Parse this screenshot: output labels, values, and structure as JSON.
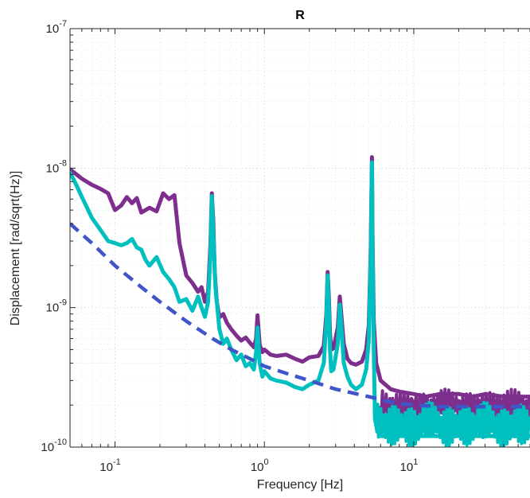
{
  "chart_data": {
    "type": "line",
    "title": "R",
    "xlabel": "Frequency [Hz]",
    "ylabel": "Displacement [rad/sqrt(Hz)]",
    "xscale": "log",
    "yscale": "log",
    "xlim": [
      0.05,
      60
    ],
    "ylim": [
      1e-10,
      1e-07
    ],
    "grid": true,
    "minor_grid": true,
    "x_ticks": [
      {
        "value": 0.1,
        "base": "10",
        "exp": "-1"
      },
      {
        "value": 1,
        "base": "10",
        "exp": "0"
      },
      {
        "value": 10,
        "base": "10",
        "exp": "1"
      }
    ],
    "y_ticks": [
      {
        "value": 1e-10,
        "base": "10",
        "exp": "-10"
      },
      {
        "value": 1e-09,
        "base": "10",
        "exp": "-9"
      },
      {
        "value": 1e-08,
        "base": "10",
        "exp": "-8"
      },
      {
        "value": 1e-07,
        "base": "10",
        "exp": "-7"
      }
    ],
    "series": [
      {
        "color": "#7E2F8E",
        "style": "solid",
        "x": [
          0.05,
          0.06,
          0.07,
          0.08,
          0.09,
          0.1,
          0.11,
          0.12,
          0.13,
          0.14,
          0.15,
          0.17,
          0.19,
          0.21,
          0.23,
          0.25,
          0.27,
          0.3,
          0.33,
          0.36,
          0.38,
          0.4,
          0.42,
          0.435,
          0.445,
          0.455,
          0.465,
          0.48,
          0.5,
          0.53,
          0.56,
          0.6,
          0.65,
          0.7,
          0.75,
          0.8,
          0.85,
          0.88,
          0.9,
          0.93,
          0.97,
          1.0,
          1.1,
          1.2,
          1.4,
          1.6,
          1.8,
          2.0,
          2.3,
          2.5,
          2.6,
          2.65,
          2.7,
          2.75,
          2.8,
          2.9,
          3.1,
          3.2,
          3.3,
          3.4,
          3.6,
          3.8,
          4.1,
          4.5,
          4.8,
          5.0,
          5.15,
          5.25,
          5.3,
          5.4,
          5.6,
          6.0,
          7,
          8,
          10,
          12,
          15,
          20,
          25,
          30,
          40,
          50,
          60
        ],
        "y": [
          9.8e-09,
          8.4e-09,
          7.6e-09,
          7.1e-09,
          6.6e-09,
          5e-09,
          5.4e-09,
          6.2e-09,
          5.6e-09,
          6.1e-09,
          4.8e-09,
          5.2e-09,
          4.9e-09,
          6.6e-09,
          6e-09,
          6.4e-09,
          2.9e-09,
          1.7e-09,
          1.5e-09,
          1.3e-09,
          1.4e-09,
          1.1e-09,
          1.3e-09,
          2.8e-09,
          6.6e-09,
          4.2e-09,
          1.8e-09,
          1.1e-09,
          8.5e-10,
          9e-10,
          7.8e-10,
          7e-10,
          6.3e-10,
          5.8e-10,
          6.1e-10,
          5.6e-10,
          5.2e-10,
          6e-10,
          8.8e-10,
          5.4e-10,
          4.8e-10,
          5e-10,
          4.6e-10,
          4.5e-10,
          4.6e-10,
          4.3e-10,
          4.1e-10,
          4.4e-10,
          4.5e-10,
          5.3e-10,
          9e-10,
          1.8e-09,
          1.2e-09,
          6.5e-10,
          5e-10,
          5.1e-10,
          7.2e-10,
          1.2e-09,
          8e-10,
          5.5e-10,
          4.3e-10,
          4e-10,
          3.9e-10,
          4.1e-10,
          5e-10,
          7.5e-10,
          2.5e-09,
          1.2e-08,
          3e-09,
          8e-10,
          4e-10,
          3e-10,
          2.6e-10,
          2.5e-10,
          2.4e-10,
          2.3e-10,
          2.4e-10,
          2.4e-10,
          2.3e-10,
          2.4e-10,
          2.3e-10,
          2.3e-10,
          2.3e-10
        ]
      },
      {
        "color": "#00BFBF",
        "style": "solid",
        "x": [
          0.05,
          0.055,
          0.06,
          0.065,
          0.07,
          0.08,
          0.09,
          0.1,
          0.11,
          0.12,
          0.13,
          0.14,
          0.15,
          0.16,
          0.17,
          0.19,
          0.21,
          0.23,
          0.25,
          0.27,
          0.3,
          0.33,
          0.36,
          0.38,
          0.4,
          0.42,
          0.435,
          0.445,
          0.455,
          0.47,
          0.5,
          0.53,
          0.56,
          0.6,
          0.65,
          0.7,
          0.75,
          0.8,
          0.85,
          0.88,
          0.9,
          0.93,
          0.97,
          1.0,
          1.1,
          1.2,
          1.4,
          1.6,
          1.8,
          2.0,
          2.3,
          2.5,
          2.6,
          2.65,
          2.7,
          2.75,
          2.8,
          2.9,
          3.1,
          3.2,
          3.3,
          3.4,
          3.6,
          3.8,
          4.1,
          4.5,
          4.8,
          5.0,
          5.15,
          5.25,
          5.3,
          5.4,
          5.5,
          5.7,
          6.0,
          7,
          8,
          10,
          12,
          15,
          20,
          25,
          30,
          40,
          50,
          60
        ],
        "y": [
          9.3e-09,
          7.6e-09,
          6.2e-09,
          5.2e-09,
          4.4e-09,
          3.6e-09,
          3e-09,
          2.9e-09,
          2.8e-09,
          2.9e-09,
          3.1e-09,
          2.7e-09,
          2.6e-09,
          2.2e-09,
          2e-09,
          2.3e-09,
          1.8e-09,
          1.6e-09,
          1.4e-09,
          1.1e-09,
          1.15e-09,
          9.5e-10,
          1.2e-09,
          1e-09,
          8.6e-10,
          1.1e-09,
          2.4e-09,
          6.3e-09,
          3.5e-09,
          1.4e-09,
          7e-10,
          5.5e-10,
          6e-10,
          5e-10,
          4.2e-10,
          4.6e-10,
          3.8e-10,
          4e-10,
          3.6e-10,
          4.8e-10,
          7.2e-10,
          4e-10,
          3.2e-10,
          3.5e-10,
          3.1e-10,
          3e-10,
          2.9e-10,
          2.7e-10,
          2.6e-10,
          2.8e-10,
          3e-10,
          4e-10,
          8e-10,
          1.7e-09,
          1e-09,
          5e-10,
          3.5e-10,
          3.6e-10,
          5.5e-10,
          1.05e-09,
          6.5e-10,
          4e-10,
          3.2e-10,
          2.8e-10,
          2.6e-10,
          2.8e-10,
          3.6e-10,
          5.8e-10,
          2.3e-09,
          1.1e-08,
          2.5e-09,
          5e-10,
          1.6e-10,
          1.3e-10,
          1.2e-10,
          1.2e-10,
          1.2e-10,
          1.2e-10,
          1.2e-10,
          1.2e-10,
          1.2e-10,
          1.2e-10,
          1.2e-10,
          1.2e-10,
          1.2e-10,
          1.2e-10
        ]
      },
      {
        "color": "#4056C8",
        "style": "dashed",
        "x": [
          0.05,
          0.07,
          0.1,
          0.15,
          0.2,
          0.3,
          0.45,
          0.6,
          0.8,
          1.0,
          1.5,
          2,
          3,
          5,
          7,
          10,
          15,
          20,
          30,
          60
        ],
        "y": [
          4e-09,
          2.9e-09,
          2e-09,
          1.4e-09,
          1.1e-09,
          8e-10,
          6e-10,
          5e-10,
          4.3e-10,
          3.8e-10,
          3.3e-10,
          3e-10,
          2.6e-10,
          2.3e-10,
          2.1e-10,
          2e-10,
          1.95e-10,
          1.95e-10,
          1.95e-10,
          1.95e-10
        ]
      }
    ],
    "noise_band": {
      "series_index": 1,
      "x_start": 5.6,
      "y_low": 1e-10,
      "y_high": 2.1e-10
    },
    "noise_band_upper": {
      "series_index": 0,
      "x_start": 6.0,
      "y_low": 1.5e-10,
      "y_high": 2.6e-10
    }
  }
}
